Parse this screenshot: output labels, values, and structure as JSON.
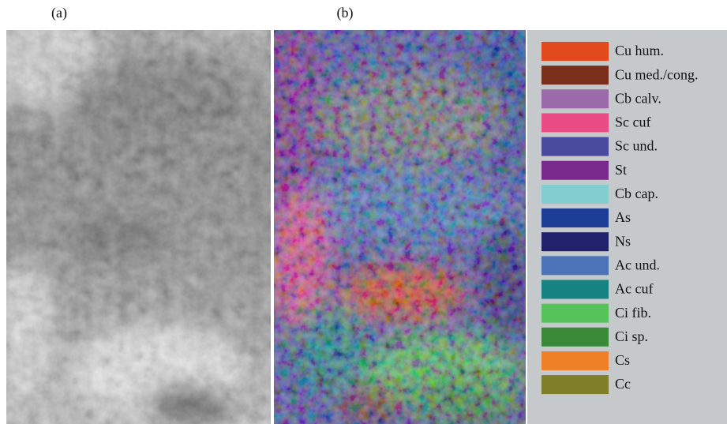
{
  "panels": {
    "a": {
      "label": "(a)"
    },
    "b": {
      "label": "(b)"
    }
  },
  "legend": {
    "items": [
      {
        "name": "Cu hum.",
        "color": "#e24a1e"
      },
      {
        "name": "Cu med./cong.",
        "color": "#7a2e1c"
      },
      {
        "name": "Cb calv.",
        "color": "#9b6aa8"
      },
      {
        "name": "Sc cuf",
        "color": "#ea4c86"
      },
      {
        "name": "Sc und.",
        "color": "#4a4a9e"
      },
      {
        "name": "St",
        "color": "#7a2a8c"
      },
      {
        "name": "Cb cap.",
        "color": "#82cdd0"
      },
      {
        "name": "As",
        "color": "#1c3f95"
      },
      {
        "name": "Ns",
        "color": "#22216b"
      },
      {
        "name": "Ac und.",
        "color": "#4b74b8"
      },
      {
        "name": "Ac cuf",
        "color": "#178282"
      },
      {
        "name": "Ci fib.",
        "color": "#56c25a"
      },
      {
        "name": "Ci sp.",
        "color": "#3b8a3a"
      },
      {
        "name": "Cs",
        "color": "#f08028"
      },
      {
        "name": "Cc",
        "color": "#7f7f2a"
      }
    ]
  }
}
